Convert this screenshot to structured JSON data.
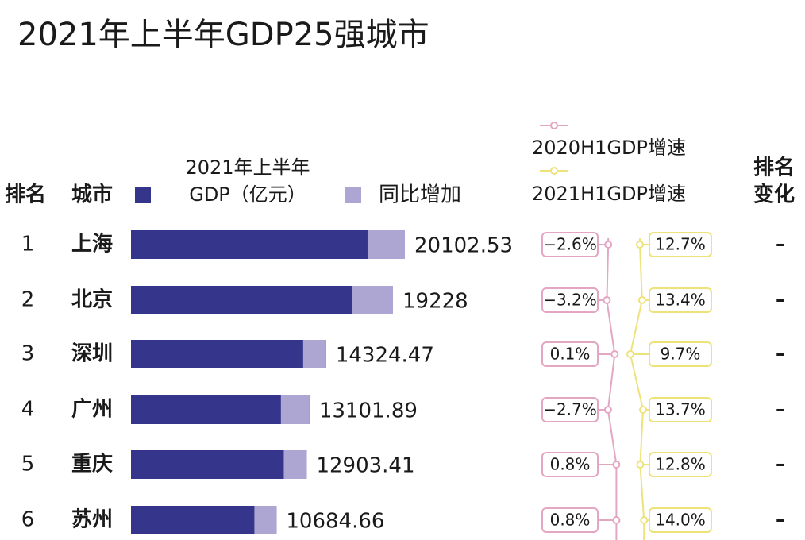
{
  "chart_data": {
    "type": "bar",
    "title": "2021年上半年GDP25强城市",
    "headers": {
      "rank": "排名",
      "city": "城市",
      "rank_change": [
        "排名",
        "变化"
      ]
    },
    "ranks": [
      "1",
      "2",
      "3",
      "4",
      "5",
      "6"
    ],
    "categories": [
      "上海",
      "北京",
      "深圳",
      "广州",
      "重庆",
      "苏州"
    ],
    "series": [
      {
        "name": [
          "2021年上半年",
          "GDP（亿元）"
        ],
        "color": "#35358c",
        "values": [
          20102.53,
          19228,
          14324.47,
          13101.89,
          12903.41,
          10684.66
        ]
      },
      {
        "name": "同比增加",
        "color": "#aea6d2",
        "values": [
          2740,
          3030,
          1690,
          2100,
          1690,
          1630
        ]
      }
    ],
    "growth": [
      {
        "name": "2020H1GDP增速",
        "color": "#e3a6c3",
        "values": [
          -2.6,
          -3.2,
          0.1,
          -2.7,
          0.8,
          0.8
        ],
        "value_labels": [
          "−2.6%",
          "−3.2%",
          "0.1%",
          "−2.7%",
          "0.8%",
          "0.8%"
        ]
      },
      {
        "name": "2021H1GDP增速",
        "color": "#eee27a",
        "values": [
          12.7,
          13.4,
          9.7,
          13.7,
          12.8,
          14.0
        ],
        "value_labels": [
          "12.7%",
          "13.4%",
          "9.7%",
          "13.7%",
          "12.8%",
          "14.0%"
        ]
      }
    ],
    "rank_change": [
      "–",
      "–",
      "–",
      "–",
      "–",
      "–"
    ]
  }
}
